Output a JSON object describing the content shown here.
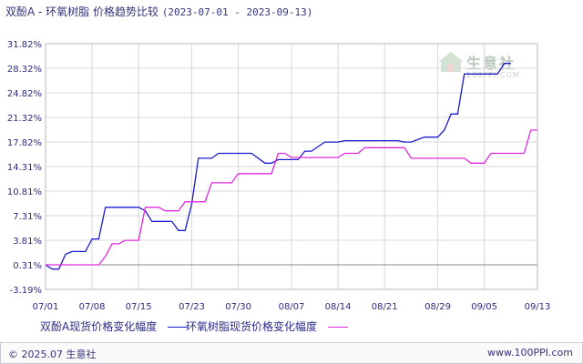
{
  "title": {
    "text": "双酚A - 环氧树脂 价格趋势比较",
    "range": "(2023-07-01 - 2023-09-13)"
  },
  "watermark": {
    "brand": "生意社",
    "url": "100PPI.COM"
  },
  "footer": {
    "copyright": "© 2025.07 生意社",
    "site": "www.100PPI.com"
  },
  "colors": {
    "series1": "#1a1ad0",
    "series2": "#e02ae0",
    "grid": "#d8d8d8",
    "axis_text": "#2c2c80"
  },
  "chart_data": {
    "type": "line",
    "ylim": [
      -3.19,
      31.82
    ],
    "y_ticks": [
      "31.82%",
      "28.32%",
      "24.82%",
      "21.32%",
      "17.82%",
      "14.31%",
      "10.81%",
      "7.31%",
      "3.81%",
      "0.31%",
      "-3.19%"
    ],
    "y_tick_values": [
      31.82,
      28.32,
      24.82,
      21.32,
      17.82,
      14.31,
      10.81,
      7.31,
      3.81,
      0.31,
      -3.19
    ],
    "x_ticks": [
      "07/01",
      "07/08",
      "07/15",
      "07/23",
      "07/30",
      "08/07",
      "08/14",
      "08/21",
      "08/29",
      "09/05",
      "09/13"
    ],
    "x_tick_days": [
      0,
      7,
      14,
      22,
      29,
      37,
      44,
      51,
      59,
      66,
      74
    ],
    "xlim_days": [
      0,
      74
    ],
    "grid": true,
    "series": [
      {
        "name": "双酚A现货价格变化幅度",
        "color": "#1a1ad0",
        "points": [
          [
            0,
            0.31
          ],
          [
            1,
            -0.3
          ],
          [
            2,
            -0.3
          ],
          [
            3,
            1.8
          ],
          [
            4,
            2.2
          ],
          [
            6,
            2.2
          ],
          [
            7,
            4.0
          ],
          [
            8,
            4.0
          ],
          [
            9,
            8.5
          ],
          [
            14,
            8.5
          ],
          [
            15,
            8.0
          ],
          [
            16,
            6.5
          ],
          [
            19,
            6.5
          ],
          [
            20,
            5.2
          ],
          [
            21,
            5.2
          ],
          [
            22,
            9.0
          ],
          [
            23,
            15.5
          ],
          [
            25,
            15.5
          ],
          [
            26,
            16.2
          ],
          [
            31,
            16.2
          ],
          [
            33,
            14.8
          ],
          [
            34,
            14.8
          ],
          [
            35,
            15.3
          ],
          [
            38,
            15.3
          ],
          [
            39,
            16.5
          ],
          [
            40,
            16.5
          ],
          [
            42,
            17.8
          ],
          [
            44,
            17.8
          ],
          [
            45,
            18.0
          ],
          [
            53,
            18.0
          ],
          [
            54,
            17.8
          ],
          [
            55,
            17.8
          ],
          [
            57,
            18.5
          ],
          [
            59,
            18.5
          ],
          [
            60,
            19.5
          ],
          [
            61,
            21.8
          ],
          [
            62,
            21.8
          ],
          [
            63,
            27.5
          ],
          [
            68,
            27.5
          ],
          [
            69,
            29.0
          ],
          [
            70,
            29.0
          ]
        ]
      },
      {
        "name": "环氧树脂现货价格变化幅度",
        "color": "#e02ae0",
        "points": [
          [
            0,
            0.31
          ],
          [
            8,
            0.31
          ],
          [
            9,
            1.5
          ],
          [
            10,
            3.3
          ],
          [
            11,
            3.3
          ],
          [
            12,
            3.8
          ],
          [
            14,
            3.8
          ],
          [
            15,
            8.5
          ],
          [
            17,
            8.5
          ],
          [
            18,
            8.0
          ],
          [
            20,
            8.0
          ],
          [
            21,
            9.3
          ],
          [
            24,
            9.3
          ],
          [
            25,
            12.0
          ],
          [
            28,
            12.0
          ],
          [
            29,
            13.3
          ],
          [
            34,
            13.3
          ],
          [
            35,
            16.2
          ],
          [
            36,
            16.2
          ],
          [
            37,
            15.6
          ],
          [
            44,
            15.6
          ],
          [
            45,
            16.2
          ],
          [
            47,
            16.2
          ],
          [
            48,
            17.0
          ],
          [
            54,
            17.0
          ],
          [
            55,
            15.5
          ],
          [
            63,
            15.5
          ],
          [
            64,
            14.8
          ],
          [
            66,
            14.8
          ],
          [
            67,
            16.2
          ],
          [
            72,
            16.2
          ],
          [
            73,
            19.5
          ],
          [
            74,
            19.5
          ]
        ]
      }
    ]
  }
}
